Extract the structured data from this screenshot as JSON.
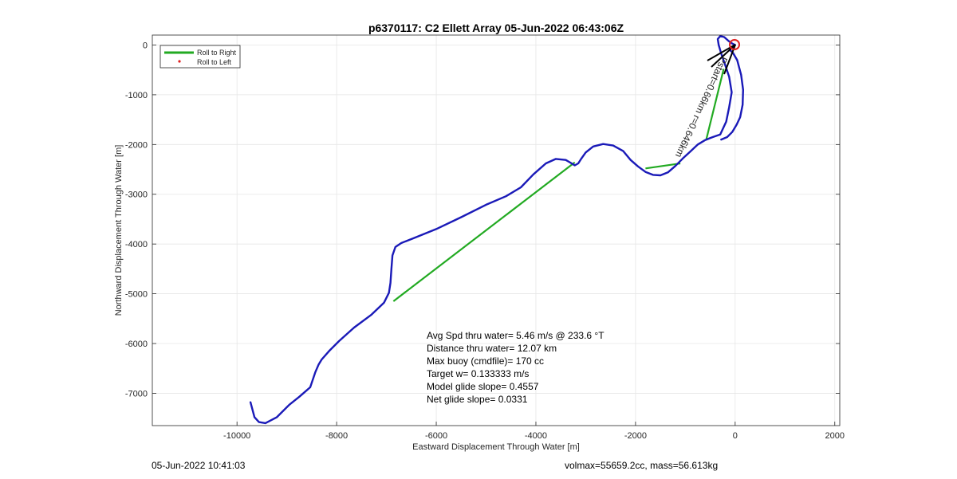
{
  "chart_data": {
    "type": "line",
    "title": "p6370117: C2 Ellett Array 05-Jun-2022 06:43:06Z",
    "xlabel": "Eastward Displacement Through Water [m]",
    "ylabel": "Northward Displacement Through Water [m]",
    "xlim": [
      -11700,
      2100
    ],
    "ylim": [
      -7650,
      200
    ],
    "xticks": [
      -10000,
      -8000,
      -6000,
      -4000,
      -2000,
      0,
      2000
    ],
    "yticks": [
      0,
      -1000,
      -2000,
      -3000,
      -4000,
      -5000,
      -6000,
      -7000
    ],
    "grid": true,
    "legend_position": "top-left",
    "legend": [
      {
        "label": "Roll to Right",
        "style": "green-line"
      },
      {
        "label": "Roll to Left",
        "style": "red-dot"
      }
    ],
    "series": [
      {
        "name": "track",
        "color": "#1a1ab8",
        "x": [
          -9730,
          -9650,
          -9560,
          -9430,
          -9200,
          -8950,
          -8750,
          -8530,
          -8430,
          -8360,
          -8300,
          -8150,
          -7950,
          -7650,
          -7300,
          -7050,
          -6950,
          -6920,
          -6900,
          -6880,
          -6820,
          -6700,
          -6450,
          -6000,
          -5500,
          -5000,
          -4600,
          -4300,
          -4050,
          -3800,
          -3600,
          -3400,
          -3300,
          -3220,
          -3150,
          -3100,
          -3000,
          -2850,
          -2650,
          -2450,
          -2250,
          -2100,
          -1950,
          -1800,
          -1650,
          -1500,
          -1350,
          -1200,
          -1050,
          -900,
          -750,
          -600,
          -450,
          -300,
          -180,
          -120,
          -70,
          -120,
          -200,
          -280,
          -330,
          -350,
          -300,
          -220,
          -130,
          -60,
          0,
          -110,
          -50,
          40,
          120,
          160,
          150,
          100,
          30,
          -60,
          -160,
          -280
        ],
        "y": [
          -7180,
          -7480,
          -7580,
          -7600,
          -7480,
          -7230,
          -7070,
          -6880,
          -6580,
          -6420,
          -6320,
          -6150,
          -5950,
          -5680,
          -5420,
          -5180,
          -4980,
          -4780,
          -4500,
          -4230,
          -4060,
          -3980,
          -3880,
          -3700,
          -3460,
          -3210,
          -3040,
          -2860,
          -2600,
          -2380,
          -2290,
          -2310,
          -2370,
          -2420,
          -2380,
          -2300,
          -2160,
          -2040,
          -1990,
          -2020,
          -2130,
          -2310,
          -2440,
          -2550,
          -2610,
          -2620,
          -2560,
          -2430,
          -2280,
          -2140,
          -2000,
          -1910,
          -1850,
          -1800,
          -1540,
          -1250,
          -950,
          -640,
          -400,
          -170,
          0,
          120,
          180,
          160,
          80,
          30,
          0,
          -100,
          -150,
          -300,
          -600,
          -900,
          -1200,
          -1450,
          -1600,
          -1750,
          -1850,
          -1900
        ]
      },
      {
        "name": "Roll to Right",
        "color": "#22aa22",
        "segments": [
          {
            "x": [
              -6860,
              -3220
            ],
            "y": [
              -5150,
              -2360
            ]
          },
          {
            "x": [
              -1800,
              -1100
            ],
            "y": [
              -2480,
              -2380
            ]
          },
          {
            "x": [
              -580,
              -230
            ],
            "y": [
              -1900,
              -480
            ]
          }
        ]
      }
    ],
    "annotations": {
      "rotated_label": "Pstart=0.66km r=0.646km",
      "avg_speed": "Avg Spd thru water=  5.46 m/s @ 233.6 °T",
      "distance": "Distance thru water= 12.07 km",
      "max_buoy": "Max buoy (cmdfile)= 170 cc",
      "target_w": "Target w= 0.133333 m/s",
      "model_glide": "Model glide slope= 0.4557",
      "net_glide": "Net glide slope= 0.0331"
    }
  },
  "footer": {
    "timestamp": "05-Jun-2022 10:41:03",
    "vol_mass": "volmax=55659.2cc, mass=56.613kg"
  }
}
